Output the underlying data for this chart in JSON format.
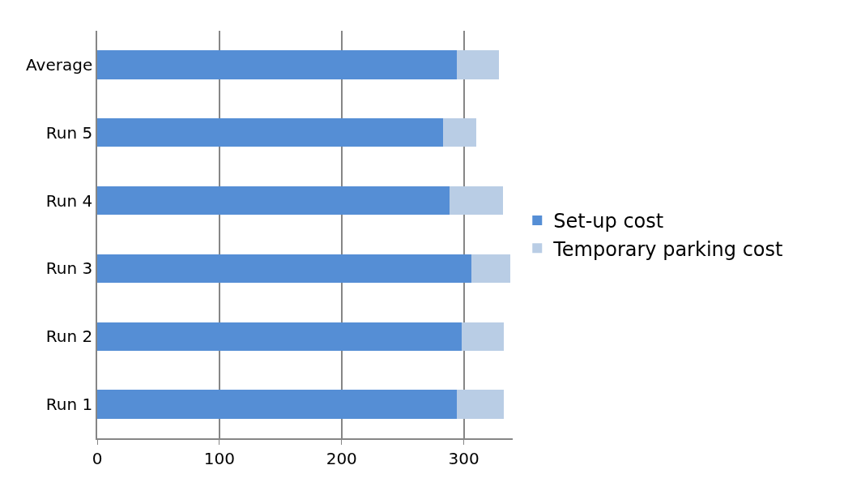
{
  "chart_data": {
    "type": "bar",
    "orientation": "horizontal",
    "stacked": true,
    "categories": [
      "Average",
      "Run 5",
      "Run 4",
      "Run 3",
      "Run 2",
      "Run 1"
    ],
    "series": [
      {
        "name": "Set-up cost",
        "color": "#558ed5",
        "values": [
          294,
          283,
          288,
          306,
          298,
          294
        ]
      },
      {
        "name": "Temporary parking cost",
        "color": "#b9cde5",
        "values": [
          35,
          27,
          44,
          32,
          35,
          39
        ]
      }
    ],
    "xlim": [
      0,
      340
    ],
    "xticks": [
      0,
      100,
      200,
      300
    ],
    "grid": "x",
    "legend": "right"
  }
}
